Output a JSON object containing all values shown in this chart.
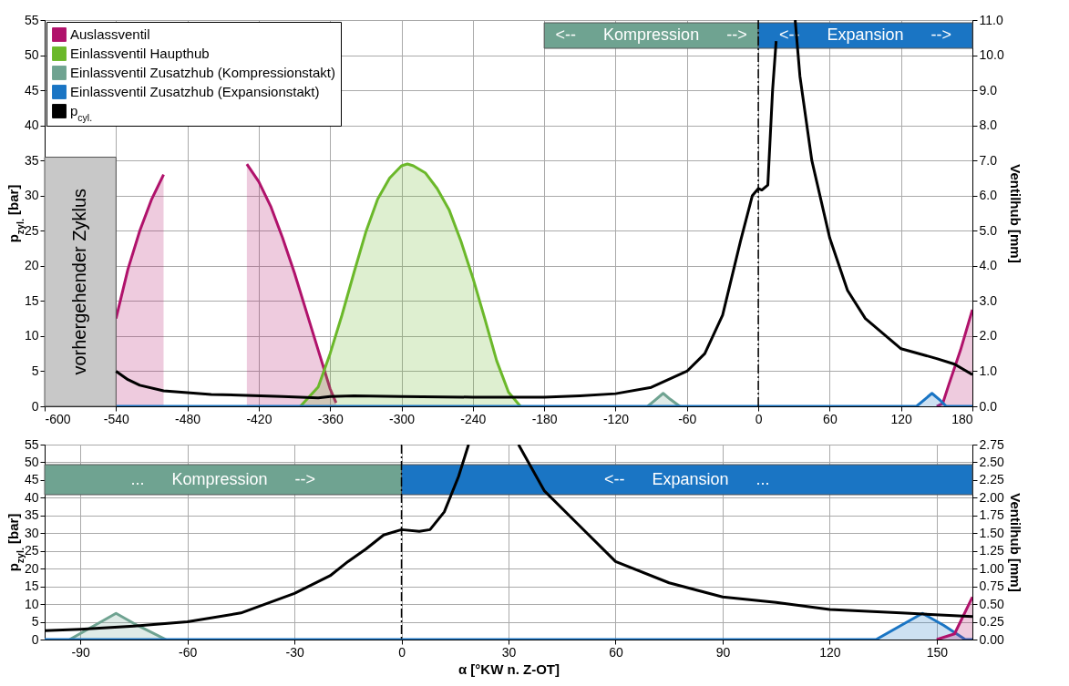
{
  "chart_data": [
    {
      "type": "area",
      "xlim": [
        -600,
        180
      ],
      "xticks": [
        -600,
        -540,
        -480,
        -420,
        -360,
        -300,
        -240,
        -180,
        -120,
        -60,
        0,
        60,
        120,
        180
      ],
      "ylim": [
        0,
        55
      ],
      "yticks": [
        0,
        5,
        10,
        15,
        20,
        25,
        30,
        35,
        40,
        45,
        50,
        55
      ],
      "y2lim": [
        0,
        11
      ],
      "y2ticks": [
        {
          "value": 0,
          "label": "0.0"
        },
        {
          "value": 1,
          "label": "1.0"
        },
        {
          "value": 2,
          "label": "2.0"
        },
        {
          "value": 3,
          "label": "3.0"
        },
        {
          "value": 4,
          "label": "4.0"
        },
        {
          "value": 5,
          "label": "5.0"
        },
        {
          "value": 6,
          "label": "6.0"
        },
        {
          "value": 7,
          "label": "7.0"
        },
        {
          "value": 8,
          "label": "8.0"
        },
        {
          "value": 9,
          "label": "9.0"
        },
        {
          "value": 10,
          "label": "10.0"
        },
        {
          "value": 11,
          "label": "11.0"
        }
      ],
      "ylabel": "p$_{zyl.}$ [bar]",
      "y2label": "Ventilhub [mm]",
      "grid": true,
      "legend": "top left",
      "bands": [
        {
          "axis": "x",
          "from": -600,
          "to": -540,
          "label": "vorhergehender Zyklus",
          "color": "#c8c8c8"
        },
        {
          "axis": "x",
          "from": -180,
          "to": 0,
          "label": "<--      Kompression      -->",
          "color": "#6fa391"
        },
        {
          "axis": "x",
          "from": 0,
          "to": 180,
          "label": "<--      Expansion      -->",
          "color": "#1a75c4"
        }
      ],
      "ref_lines": [
        {
          "axis": "x",
          "value": 0,
          "color": "#000000",
          "line_style": "dashed"
        }
      ],
      "series": [
        {
          "name": "Auslassventil",
          "axis": "y2",
          "color": "#b0126b",
          "x": [
            -540,
            -530,
            -520,
            -510,
            -500,
            -492,
            -470,
            -450,
            -440,
            -430,
            -420,
            -410,
            -400,
            -390,
            -380,
            -370,
            -360,
            -355,
            -350,
            150,
            155,
            160,
            170,
            180
          ],
          "values": [
            2.5,
            3.9,
            5.0,
            5.9,
            6.6,
            null,
            null,
            null,
            null,
            6.9,
            6.4,
            5.7,
            4.8,
            3.8,
            2.7,
            1.6,
            0.5,
            0.1,
            null,
            0,
            0.08,
            0.6,
            1.6,
            2.75
          ]
        },
        {
          "name": "Einlassventil Haupthub",
          "axis": "y2",
          "color": "#6bb82a",
          "x": [
            -385,
            -370,
            -360,
            -350,
            -340,
            -330,
            -320,
            -310,
            -300,
            -295,
            -290,
            -280,
            -270,
            -260,
            -250,
            -240,
            -230,
            -220,
            -210,
            -200
          ],
          "values": [
            0,
            0.55,
            1.5,
            2.6,
            3.8,
            4.96,
            5.9,
            6.5,
            6.85,
            6.9,
            6.85,
            6.65,
            6.2,
            5.6,
            4.7,
            3.66,
            2.5,
            1.3,
            0.4,
            0
          ]
        },
        {
          "name": "Einlassventil Zusatzhub (Kompressionstakt)",
          "axis": "y2",
          "color": "#6fa391",
          "x": [
            -93,
            -86,
            -80,
            -74,
            -66
          ],
          "values": [
            0,
            0.2,
            0.37,
            0.2,
            0
          ]
        },
        {
          "name": "Einlassventil Zusatzhub (Expansionstakt)",
          "axis": "y2",
          "color": "#1a75c4",
          "x": [
            -540,
            133,
            140,
            146,
            152,
            158,
            180
          ],
          "values": [
            0,
            0,
            0.2,
            0.37,
            0.2,
            0,
            0
          ]
        },
        {
          "name": "p$_{cyl.}$",
          "type": "line",
          "color": "#000000",
          "x": [
            -540,
            -530,
            -520,
            -500,
            -460,
            -400,
            -370,
            -360,
            -340,
            -300,
            -240,
            -180,
            -150,
            -120,
            -90,
            -60,
            -45,
            -30,
            -15,
            -5,
            0,
            3,
            8,
            12,
            15,
            18,
            25,
            31,
            35,
            45,
            60,
            75,
            90,
            120,
            150,
            165,
            180
          ],
          "values": [
            5,
            3.8,
            3,
            2.2,
            1.7,
            1.4,
            1.2,
            1.4,
            1.5,
            1.4,
            1.3,
            1.3,
            1.5,
            1.8,
            2.7,
            5,
            7.5,
            13,
            23.5,
            30,
            31,
            30.8,
            31.5,
            45,
            52,
            null,
            null,
            55,
            47,
            35,
            24,
            16.5,
            12.5,
            8.2,
            6.8,
            6,
            4.5
          ]
        }
      ]
    },
    {
      "type": "area",
      "xlim": [
        -100,
        160
      ],
      "xticks": [
        -90,
        -60,
        -30,
        0,
        30,
        60,
        90,
        120,
        150
      ],
      "ylim": [
        0,
        55
      ],
      "yticks": [
        0,
        5,
        10,
        15,
        20,
        25,
        30,
        35,
        40,
        45,
        50,
        55
      ],
      "y2lim": [
        0,
        2.75
      ],
      "y2ticks": [
        {
          "value": 0,
          "label": "0.00"
        },
        {
          "value": 0.25,
          "label": "0.25"
        },
        {
          "value": 0.5,
          "label": "0.50"
        },
        {
          "value": 0.75,
          "label": "0.75"
        },
        {
          "value": 1,
          "label": "1.00"
        },
        {
          "value": 1.25,
          "label": "1.25"
        },
        {
          "value": 1.5,
          "label": "1.50"
        },
        {
          "value": 1.75,
          "label": "1.75"
        },
        {
          "value": 2,
          "label": "2.00"
        },
        {
          "value": 2.25,
          "label": "2.25"
        },
        {
          "value": 2.5,
          "label": "2.50"
        },
        {
          "value": 2.75,
          "label": "2.75"
        }
      ],
      "xlabel": "α [°KW n. Z-OT]",
      "ylabel": "p$_{zyl.}$ [bar]",
      "y2label": "Ventilhub [mm]",
      "grid": true,
      "bands": [
        {
          "axis": "x",
          "from": -100,
          "to": 0,
          "label": "...      Kompression      -->",
          "color": "#6fa391"
        },
        {
          "axis": "x",
          "from": 0,
          "to": 160,
          "label": "<--      Expansion      ...",
          "color": "#1a75c4"
        }
      ],
      "ref_lines": [
        {
          "axis": "x",
          "value": 0,
          "color": "#000000",
          "line_style": "dashed"
        }
      ],
      "series": [
        {
          "axis": "y2",
          "color": "#6fa391",
          "x": [
            -93,
            -86,
            -80,
            -74,
            -66
          ],
          "values": [
            0,
            0.2,
            0.37,
            0.2,
            0
          ]
        },
        {
          "axis": "y2",
          "color": "#1a75c4",
          "x": [
            -100,
            133,
            140,
            146,
            152,
            158,
            160
          ],
          "values": [
            0,
            0,
            0.2,
            0.37,
            0.2,
            0,
            0
          ]
        },
        {
          "axis": "y2",
          "color": "#b0126b",
          "x": [
            150,
            155,
            160
          ],
          "values": [
            0,
            0.08,
            0.6
          ]
        },
        {
          "type": "line",
          "color": "#000000",
          "x": [
            -100,
            -90,
            -75,
            -60,
            -45,
            -30,
            -20,
            -15,
            -10,
            -5,
            0,
            5,
            8,
            12,
            16,
            18.8,
            25,
            32.8,
            40,
            50,
            60,
            75,
            90,
            105,
            120,
            140,
            160
          ],
          "values": [
            2.5,
            2.9,
            3.8,
            5,
            7.5,
            13,
            18,
            22,
            25.5,
            29.5,
            31,
            30.5,
            31,
            36,
            46,
            55,
            null,
            55,
            42,
            32,
            22,
            16,
            12,
            10.5,
            8.5,
            7.5,
            6.5
          ]
        }
      ]
    }
  ]
}
